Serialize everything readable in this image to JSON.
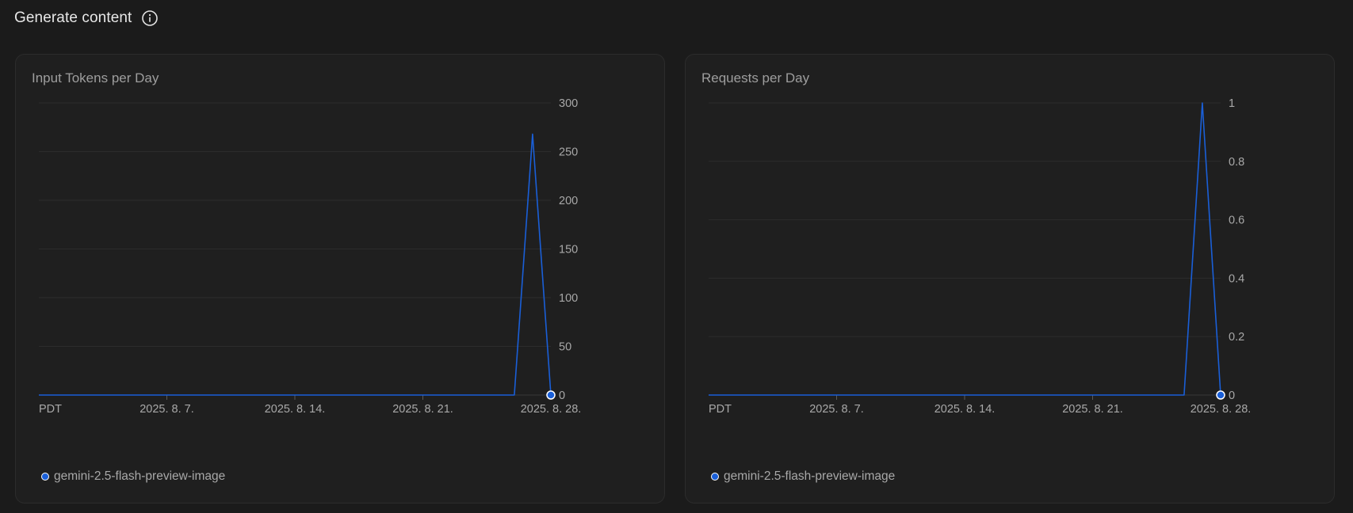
{
  "page": {
    "title": "Generate content",
    "info_icon": "info-circle-icon"
  },
  "colors": {
    "series": "#1a5fd8",
    "grid": "#2c2c2c",
    "axis": "#3a3a3a",
    "text": "#a8a8a8"
  },
  "chart_data": [
    {
      "type": "line",
      "title": "Input Tokens per Day",
      "xlabel": "",
      "ylabel": "",
      "timezone_label": "PDT",
      "x_ticks": [
        "2025. 8. 7.",
        "2025. 8. 14.",
        "2025. 8. 21.",
        "2025. 8. 28."
      ],
      "y_ticks": [
        "0",
        "50",
        "100",
        "150",
        "200",
        "250",
        "300"
      ],
      "ylim": [
        0,
        300
      ],
      "y_axis_position": "right",
      "grid": true,
      "legend_position": "bottom-left",
      "series": [
        {
          "name": "gemini-2.5-flash-preview-image",
          "x": [
            "2025-07-31",
            "2025-08-01",
            "2025-08-02",
            "2025-08-03",
            "2025-08-04",
            "2025-08-05",
            "2025-08-06",
            "2025-08-07",
            "2025-08-08",
            "2025-08-09",
            "2025-08-10",
            "2025-08-11",
            "2025-08-12",
            "2025-08-13",
            "2025-08-14",
            "2025-08-15",
            "2025-08-16",
            "2025-08-17",
            "2025-08-18",
            "2025-08-19",
            "2025-08-20",
            "2025-08-21",
            "2025-08-22",
            "2025-08-23",
            "2025-08-24",
            "2025-08-25",
            "2025-08-26",
            "2025-08-27",
            "2025-08-28"
          ],
          "values": [
            0,
            0,
            0,
            0,
            0,
            0,
            0,
            0,
            0,
            0,
            0,
            0,
            0,
            0,
            0,
            0,
            0,
            0,
            0,
            0,
            0,
            0,
            0,
            0,
            0,
            0,
            0,
            268,
            0
          ]
        }
      ]
    },
    {
      "type": "line",
      "title": "Requests per Day",
      "xlabel": "",
      "ylabel": "",
      "timezone_label": "PDT",
      "x_ticks": [
        "2025. 8. 7.",
        "2025. 8. 14.",
        "2025. 8. 21.",
        "2025. 8. 28."
      ],
      "y_ticks": [
        "0",
        "0.2",
        "0.4",
        "0.6",
        "0.8",
        "1"
      ],
      "ylim": [
        0,
        1
      ],
      "y_axis_position": "right",
      "grid": true,
      "legend_position": "bottom-left",
      "series": [
        {
          "name": "gemini-2.5-flash-preview-image",
          "x": [
            "2025-07-31",
            "2025-08-01",
            "2025-08-02",
            "2025-08-03",
            "2025-08-04",
            "2025-08-05",
            "2025-08-06",
            "2025-08-07",
            "2025-08-08",
            "2025-08-09",
            "2025-08-10",
            "2025-08-11",
            "2025-08-12",
            "2025-08-13",
            "2025-08-14",
            "2025-08-15",
            "2025-08-16",
            "2025-08-17",
            "2025-08-18",
            "2025-08-19",
            "2025-08-20",
            "2025-08-21",
            "2025-08-22",
            "2025-08-23",
            "2025-08-24",
            "2025-08-25",
            "2025-08-26",
            "2025-08-27",
            "2025-08-28"
          ],
          "values": [
            0,
            0,
            0,
            0,
            0,
            0,
            0,
            0,
            0,
            0,
            0,
            0,
            0,
            0,
            0,
            0,
            0,
            0,
            0,
            0,
            0,
            0,
            0,
            0,
            0,
            0,
            0,
            1,
            0
          ]
        }
      ]
    }
  ]
}
